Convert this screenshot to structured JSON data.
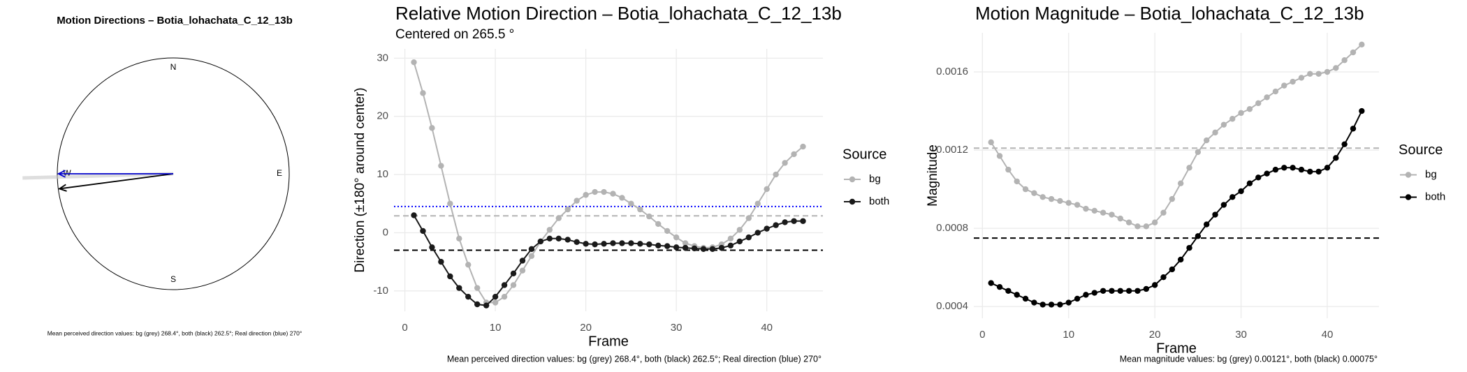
{
  "chart_data": [
    {
      "type": "compass",
      "title": "Motion Directions – Botia_lohachata_C_12_13b",
      "compass_labels": [
        "N",
        "E",
        "S",
        "W"
      ],
      "arrows": [
        {
          "direction": 268.4,
          "color": "#c8c8c8"
        },
        {
          "direction": 262.5,
          "color": "#000000"
        },
        {
          "direction": 270,
          "color": "#0000cc"
        }
      ],
      "caption": "Mean perceived direction values: bg (grey) 268.4°, both (black) 262.5°; Real direction (blue) 270°"
    },
    {
      "type": "line",
      "title": "Relative Motion Direction – Botia_lohachata_C_12_13b",
      "subtitle": "Centered on  265.5 °",
      "xlabel": "Frame",
      "ylabel": "Direction (±180° around center)",
      "legend_title": "Source",
      "x": [
        1,
        2,
        3,
        4,
        5,
        6,
        7,
        8,
        9,
        10,
        11,
        12,
        13,
        14,
        15,
        16,
        17,
        18,
        19,
        20,
        21,
        22,
        23,
        24,
        25,
        26,
        27,
        28,
        29,
        30,
        31,
        32,
        33,
        34,
        35,
        36,
        37,
        38,
        39,
        40,
        41,
        42,
        43,
        44
      ],
      "series": [
        {
          "name": "bg",
          "color": "#b3b3b3",
          "values": [
            29.3,
            24,
            18,
            11.5,
            5,
            -1,
            -5.5,
            -9.5,
            -12,
            -12,
            -11,
            -9,
            -6.5,
            -4,
            -1.5,
            0.5,
            2.5,
            4,
            5.5,
            6.5,
            7,
            7,
            6.7,
            6,
            5,
            4,
            2.8,
            1.5,
            0.3,
            -0.8,
            -1.8,
            -2.3,
            -2.6,
            -2.5,
            -2,
            -1,
            0.5,
            2.5,
            5,
            7.5,
            10,
            12,
            13.5,
            14.8
          ]
        },
        {
          "name": "both",
          "color": "#1a1a1a",
          "values": [
            3,
            0.3,
            -2.5,
            -5,
            -7.5,
            -9.5,
            -11,
            -12.3,
            -12.5,
            -11,
            -9,
            -7,
            -4.8,
            -2.8,
            -1.5,
            -1,
            -1,
            -1.2,
            -1.6,
            -1.9,
            -2,
            -1.9,
            -1.8,
            -1.8,
            -1.8,
            -1.9,
            -2,
            -2.2,
            -2.3,
            -2.5,
            -2.6,
            -2.7,
            -2.8,
            -2.8,
            -2.6,
            -2.2,
            -1.5,
            -0.8,
            0,
            0.7,
            1.3,
            1.8,
            2,
            2
          ]
        }
      ],
      "hlines": [
        {
          "value": 4.5,
          "color": "#0000ff",
          "style": "dotted"
        },
        {
          "value": 2.9,
          "color": "#b3b3b3",
          "style": "dashed"
        },
        {
          "value": -3,
          "color": "#000000",
          "style": "dashed"
        }
      ],
      "xlim": [
        -1.2,
        46.2
      ],
      "ylim": [
        -13.5,
        31.6
      ],
      "xticks": [
        0,
        10,
        20,
        30,
        40
      ],
      "yticks": [
        -10,
        0,
        10,
        20,
        30
      ],
      "grid": true,
      "caption": "Mean perceived direction values: bg (grey) 268.4°, both (black) 262.5°; Real direction (blue) 270°"
    },
    {
      "type": "line",
      "title": "Motion Magnitude – Botia_lohachata_C_12_13b",
      "xlabel": "Frame",
      "ylabel": "Magnitude",
      "legend_title": "Source",
      "x": [
        1,
        2,
        3,
        4,
        5,
        6,
        7,
        8,
        9,
        10,
        11,
        12,
        13,
        14,
        15,
        16,
        17,
        18,
        19,
        20,
        21,
        22,
        23,
        24,
        25,
        26,
        27,
        28,
        29,
        30,
        31,
        32,
        33,
        34,
        35,
        36,
        37,
        38,
        39,
        40,
        41,
        42,
        43,
        44
      ],
      "series": [
        {
          "name": "bg",
          "color": "#b3b3b3",
          "values": [
            0.00124,
            0.00117,
            0.0011,
            0.00104,
            0.001,
            0.00098,
            0.00096,
            0.00095,
            0.00094,
            0.00093,
            0.00092,
            0.0009,
            0.00089,
            0.00088,
            0.00087,
            0.00085,
            0.00083,
            0.00081,
            0.00081,
            0.00083,
            0.00088,
            0.00095,
            0.00103,
            0.00111,
            0.00119,
            0.00125,
            0.00129,
            0.00133,
            0.00136,
            0.00139,
            0.00141,
            0.00144,
            0.00147,
            0.0015,
            0.00153,
            0.00155,
            0.00157,
            0.00159,
            0.00159,
            0.0016,
            0.00162,
            0.00166,
            0.0017,
            0.00174
          ]
        },
        {
          "name": "both",
          "color": "#000000",
          "values": [
            0.00052,
            0.0005,
            0.00048,
            0.00046,
            0.00044,
            0.00042,
            0.00041,
            0.00041,
            0.00041,
            0.00042,
            0.00044,
            0.00046,
            0.00047,
            0.00048,
            0.00048,
            0.00048,
            0.00048,
            0.00048,
            0.00049,
            0.00051,
            0.00055,
            0.00059,
            0.00064,
            0.0007,
            0.00076,
            0.00082,
            0.00087,
            0.00092,
            0.00096,
            0.00099,
            0.00103,
            0.00106,
            0.00108,
            0.0011,
            0.00111,
            0.00111,
            0.0011,
            0.00109,
            0.00109,
            0.00111,
            0.00116,
            0.00123,
            0.00131,
            0.0014
          ]
        }
      ],
      "hlines": [
        {
          "value": 0.00121,
          "color": "#b3b3b3",
          "style": "dashed"
        },
        {
          "value": 0.00075,
          "color": "#000000",
          "style": "dashed"
        }
      ],
      "xlim": [
        -1,
        46
      ],
      "ylim": [
        0.00034,
        0.0018
      ],
      "xticks": [
        0,
        10,
        20,
        30,
        40
      ],
      "yticks": [
        0.0004,
        0.0008,
        0.0012,
        0.0016
      ],
      "grid": true,
      "caption": "Mean magnitude values: bg (grey) 0.00121°, both (black) 0.00075°"
    }
  ]
}
